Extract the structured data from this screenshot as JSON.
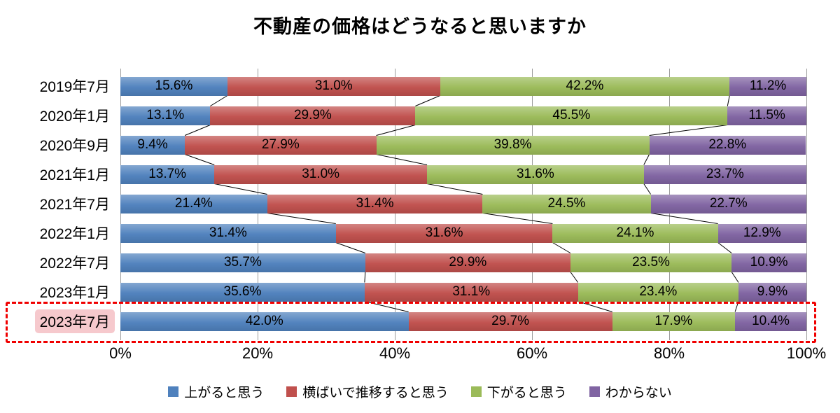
{
  "title": "不動産の価格はどうなると思いますか",
  "chart_data": {
    "type": "bar",
    "stacked": true,
    "orientation": "horizontal",
    "title": "不動産の価格はどうなると思いますか",
    "categories": [
      "2019年7月",
      "2020年1月",
      "2020年9月",
      "2021年1月",
      "2021年7月",
      "2022年1月",
      "2022年7月",
      "2023年1月",
      "2023年7月"
    ],
    "series": [
      {
        "name": "上がると思う",
        "color": "#4F81BD",
        "values": [
          15.6,
          13.1,
          9.4,
          13.7,
          21.4,
          31.4,
          35.7,
          35.6,
          42.0
        ]
      },
      {
        "name": "横ばいで推移すると思う",
        "color": "#C0504D",
        "values": [
          31.0,
          29.9,
          27.9,
          31.0,
          31.4,
          31.6,
          29.9,
          31.1,
          29.7
        ]
      },
      {
        "name": "下がると思う",
        "color": "#9BBB59",
        "values": [
          42.2,
          45.5,
          39.8,
          31.6,
          24.5,
          24.1,
          23.5,
          23.4,
          17.9
        ]
      },
      {
        "name": "わからない",
        "color": "#8064A2",
        "values": [
          11.2,
          11.5,
          22.8,
          23.7,
          22.7,
          12.9,
          10.9,
          9.9,
          10.4
        ]
      }
    ],
    "x_ticks": [
      "0%",
      "20%",
      "40%",
      "60%",
      "80%",
      "100%"
    ],
    "xlim": [
      0,
      100
    ],
    "value_suffix": "%",
    "gridlines": "vertical",
    "legend_position": "bottom",
    "highlighted_category": "2023年7月",
    "highlight_outline_color": "#f00000",
    "highlight_label_background": "#f6c9cd"
  }
}
